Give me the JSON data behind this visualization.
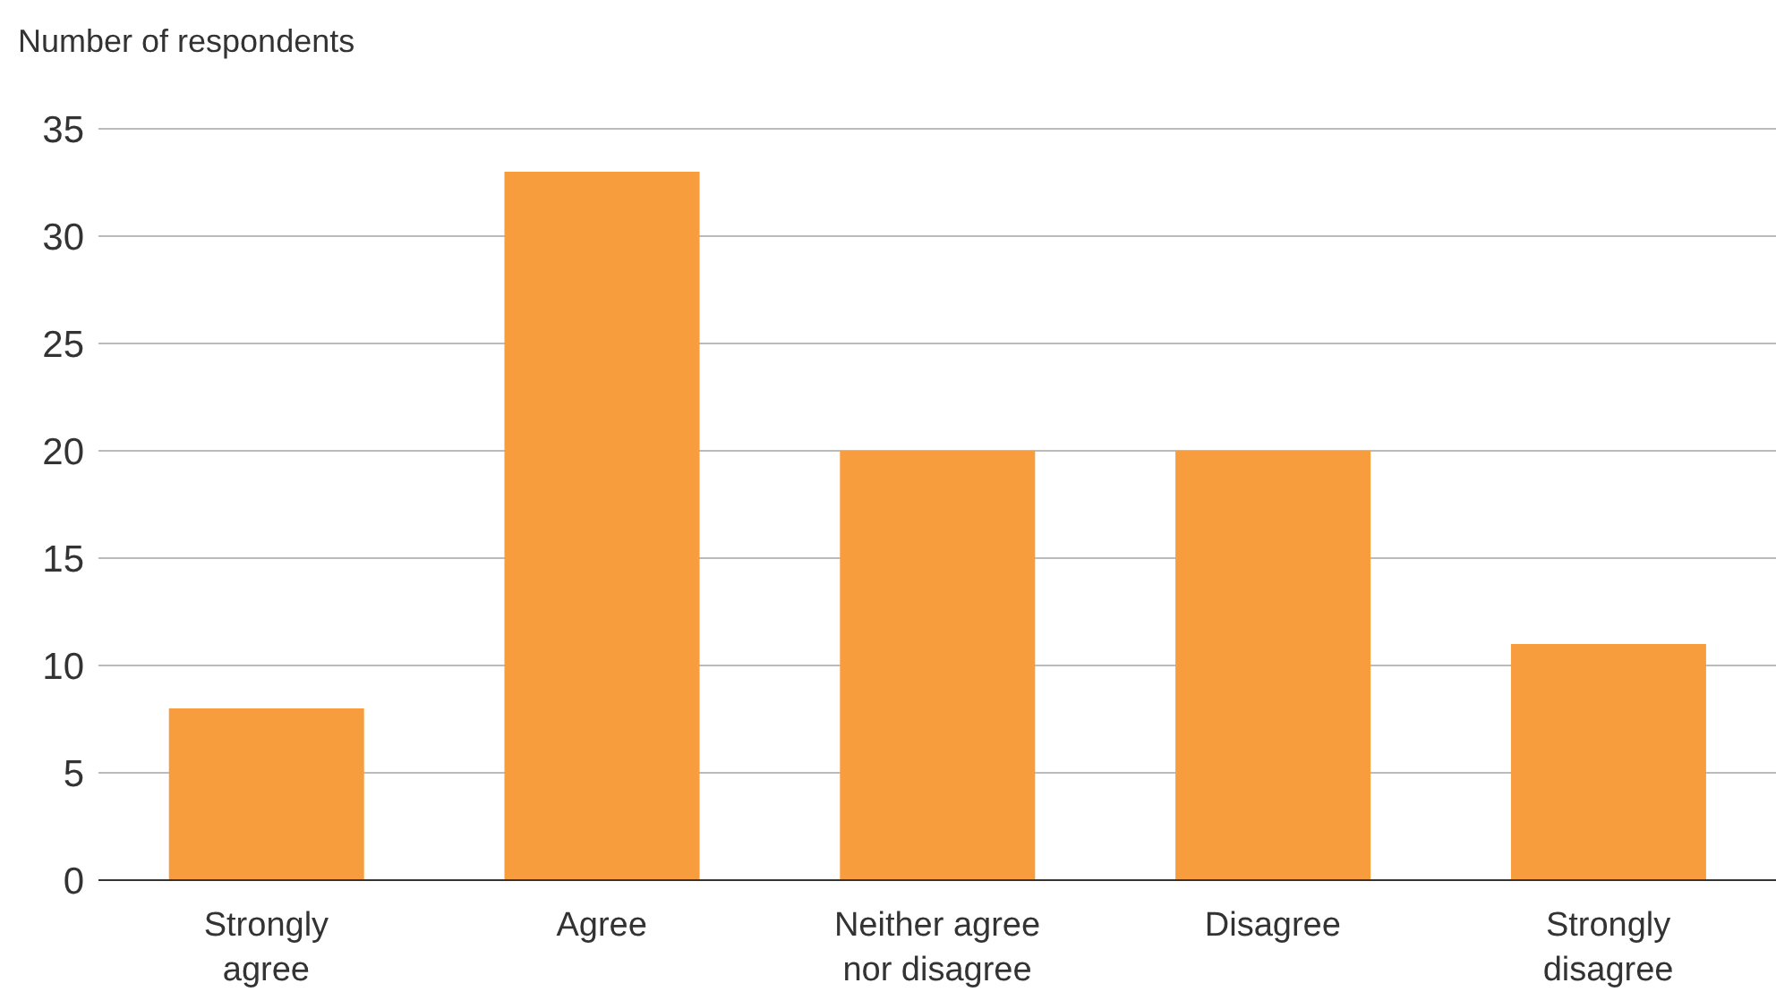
{
  "chart_data": {
    "type": "bar",
    "ylabel": "Number of respondents",
    "categories": [
      "Strongly agree",
      "Agree",
      "Neither agree nor disagree",
      "Disagree",
      "Strongly disagree"
    ],
    "values": [
      8,
      33,
      20,
      20,
      11
    ],
    "color": "#f89d3d",
    "ylim": [
      0,
      35
    ],
    "yticks": [
      0,
      5,
      10,
      15,
      20,
      25,
      30,
      35
    ],
    "grid": "y"
  }
}
